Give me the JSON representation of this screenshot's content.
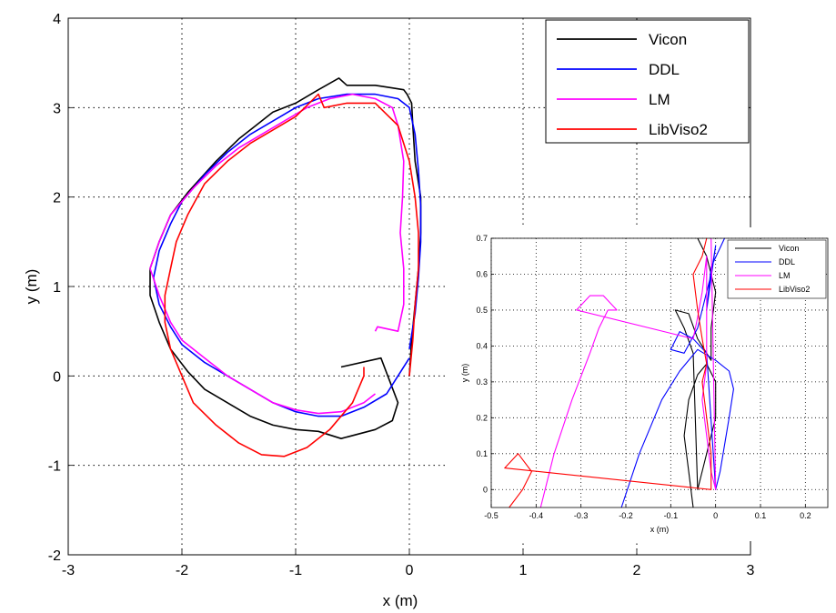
{
  "chart_data": [
    {
      "type": "line",
      "title": "",
      "xlabel": "x (m)",
      "ylabel": "y (m)",
      "xlim": [
        -3,
        3
      ],
      "ylim": [
        -2,
        4
      ],
      "xticks": [
        "-3",
        "-2",
        "-1",
        "0",
        "1",
        "2",
        "3"
      ],
      "yticks": [
        "-2",
        "-1",
        "0",
        "1",
        "2",
        "3",
        "4"
      ],
      "grid": true,
      "legend_position": "top-right",
      "series": [
        {
          "name": "Vicon",
          "color": "#000000",
          "x": [
            0.0,
            0.02,
            0.05,
            0.08,
            0.1,
            0.1,
            0.05,
            0.03,
            0.02,
            0.0,
            -0.02,
            -0.05,
            -0.15,
            -0.3,
            -0.55,
            -0.62,
            -0.8,
            -1.0,
            -1.2,
            -1.35,
            -1.5,
            -1.7,
            -1.95,
            -2.1,
            -2.2,
            -2.28,
            -2.28,
            -2.2,
            -2.1,
            -1.95,
            -1.8,
            -1.6,
            -1.4,
            -1.2,
            -1.0,
            -0.8,
            -0.6,
            -0.3,
            -0.15,
            -0.1,
            -0.25,
            -0.6
          ],
          "y": [
            0.0,
            0.4,
            0.8,
            1.2,
            1.6,
            2.0,
            2.4,
            2.8,
            3.05,
            3.1,
            3.15,
            3.2,
            3.22,
            3.25,
            3.25,
            3.33,
            3.2,
            3.05,
            2.95,
            2.8,
            2.65,
            2.4,
            2.05,
            1.8,
            1.5,
            1.2,
            0.9,
            0.6,
            0.3,
            0.05,
            -0.15,
            -0.3,
            -0.45,
            -0.55,
            -0.6,
            -0.62,
            -0.7,
            -0.6,
            -0.5,
            -0.3,
            0.2,
            0.1
          ]
        },
        {
          "name": "DDL",
          "color": "#0000ff",
          "x": [
            0.0,
            0.05,
            0.08,
            0.1,
            0.1,
            0.08,
            0.05,
            0.0,
            -0.1,
            -0.3,
            -0.55,
            -0.8,
            -1.0,
            -1.2,
            -1.4,
            -1.6,
            -1.8,
            -2.0,
            -2.1,
            -2.2,
            -2.25,
            -2.2,
            -2.1,
            -2.0,
            -1.8,
            -1.6,
            -1.4,
            -1.2,
            -1.0,
            -0.8,
            -0.6,
            -0.4,
            -0.2,
            -0.1,
            0.0
          ],
          "y": [
            0.3,
            0.7,
            1.1,
            1.5,
            1.9,
            2.3,
            2.7,
            3.0,
            3.1,
            3.15,
            3.15,
            3.1,
            3.0,
            2.85,
            2.7,
            2.5,
            2.25,
            1.95,
            1.7,
            1.4,
            1.1,
            0.8,
            0.55,
            0.35,
            0.15,
            0.0,
            -0.15,
            -0.3,
            -0.4,
            -0.45,
            -0.45,
            -0.35,
            -0.2,
            0.0,
            0.2
          ]
        },
        {
          "name": "LM",
          "color": "#ff00ff",
          "x": [
            -0.3,
            -0.28,
            -0.1,
            -0.05,
            -0.05,
            -0.08,
            -0.06,
            -0.05,
            -0.1,
            -0.15,
            -0.3,
            -0.5,
            -0.7,
            -0.9,
            -1.1,
            -1.3,
            -1.5,
            -1.7,
            -1.9,
            -2.1,
            -2.2,
            -2.28,
            -2.2,
            -2.1,
            -2.0,
            -1.8,
            -1.6,
            -1.4,
            -1.2,
            -1.0,
            -0.8,
            -0.6,
            -0.4,
            -0.3
          ],
          "y": [
            0.5,
            0.55,
            0.5,
            0.8,
            1.2,
            1.6,
            2.0,
            2.4,
            2.8,
            3.0,
            3.1,
            3.15,
            3.1,
            3.0,
            2.85,
            2.7,
            2.55,
            2.35,
            2.1,
            1.8,
            1.5,
            1.2,
            0.9,
            0.6,
            0.4,
            0.2,
            0.0,
            -0.15,
            -0.3,
            -0.38,
            -0.42,
            -0.4,
            -0.3,
            -0.2
          ]
        },
        {
          "name": "LibViso2",
          "color": "#ff0000",
          "x": [
            0.0,
            0.03,
            0.05,
            0.08,
            0.08,
            0.05,
            0.0,
            -0.1,
            -0.3,
            -0.55,
            -0.75,
            -0.8,
            -1.0,
            -1.2,
            -1.4,
            -1.6,
            -1.8,
            -1.95,
            -2.05,
            -2.1,
            -2.15,
            -2.15,
            -2.1,
            -2.0,
            -1.9,
            -1.7,
            -1.5,
            -1.3,
            -1.1,
            -0.9,
            -0.7,
            -0.5,
            -0.4,
            -0.4
          ],
          "y": [
            0.0,
            0.4,
            0.8,
            1.2,
            1.6,
            2.0,
            2.4,
            2.8,
            3.05,
            3.05,
            3.0,
            3.15,
            2.9,
            2.75,
            2.6,
            2.4,
            2.15,
            1.8,
            1.5,
            1.2,
            0.9,
            0.6,
            0.3,
            0.0,
            -0.3,
            -0.55,
            -0.75,
            -0.88,
            -0.9,
            -0.8,
            -0.6,
            -0.3,
            0.0,
            0.1
          ]
        }
      ]
    },
    {
      "type": "line",
      "title": "",
      "xlabel": "x (m)",
      "ylabel": "y (m)",
      "xlim": [
        -0.5,
        0.25
      ],
      "ylim": [
        -0.05,
        0.7
      ],
      "xticks": [
        "-0.5",
        "-0.4",
        "-0.3",
        "-0.2",
        "-0.1",
        "0",
        "0.1",
        "0.2"
      ],
      "yticks": [
        "0",
        "0.1",
        "0.2",
        "0.3",
        "0.4",
        "0.5",
        "0.6",
        "0.7"
      ],
      "grid": true,
      "legend_position": "top-right",
      "series": [
        {
          "name": "Vicon",
          "color": "#000000",
          "x": [
            -0.05,
            -0.06,
            -0.07,
            -0.06,
            -0.04,
            -0.02,
            0.0,
            0.0,
            -0.02,
            -0.04,
            -0.05,
            -0.07,
            -0.09,
            -0.06,
            -0.04,
            -0.01,
            -0.01,
            0.0,
            -0.01,
            -0.02,
            -0.04
          ],
          "y": [
            -0.05,
            0.05,
            0.15,
            0.25,
            0.32,
            0.35,
            0.3,
            0.2,
            0.1,
            0.0,
            0.38,
            0.45,
            0.5,
            0.49,
            0.42,
            0.36,
            0.45,
            0.55,
            0.6,
            0.65,
            0.7
          ]
        },
        {
          "name": "DDL",
          "color": "#0000ff",
          "x": [
            -0.21,
            -0.17,
            -0.12,
            -0.08,
            -0.04,
            0.0,
            0.03,
            0.04,
            0.03,
            0.01,
            0.0,
            -0.02,
            -0.05,
            -0.08,
            -0.1,
            -0.07,
            -0.04,
            -0.01,
            0.0,
            -0.02,
            -0.01,
            0.02
          ],
          "y": [
            -0.05,
            0.1,
            0.25,
            0.33,
            0.39,
            0.36,
            0.33,
            0.28,
            0.2,
            0.05,
            0.0,
            0.38,
            0.42,
            0.44,
            0.39,
            0.38,
            0.45,
            0.6,
            0.68,
            0.5,
            0.62,
            0.7
          ]
        },
        {
          "name": "LM",
          "color": "#ff00ff",
          "x": [
            -0.39,
            -0.36,
            -0.32,
            -0.28,
            -0.26,
            -0.24,
            -0.22,
            -0.25,
            -0.28,
            -0.31,
            -0.05,
            -0.04,
            -0.03,
            -0.02,
            -0.02,
            -0.03,
            -0.02,
            -0.01,
            0.0,
            -0.01
          ],
          "y": [
            -0.05,
            0.1,
            0.25,
            0.38,
            0.45,
            0.5,
            0.5,
            0.54,
            0.54,
            0.5,
            0.42,
            0.48,
            0.55,
            0.65,
            0.35,
            0.25,
            0.15,
            0.05,
            0.0,
            0.7
          ]
        },
        {
          "name": "LibViso2",
          "color": "#ff0000",
          "x": [
            -0.46,
            -0.43,
            -0.41,
            -0.44,
            -0.47,
            -0.01,
            -0.01,
            -0.02,
            -0.03,
            -0.02,
            -0.03,
            -0.04,
            -0.05,
            -0.03,
            -0.02
          ],
          "y": [
            -0.05,
            0.0,
            0.05,
            0.1,
            0.06,
            0.0,
            0.1,
            0.2,
            0.3,
            0.35,
            0.42,
            0.5,
            0.6,
            0.65,
            0.7
          ]
        }
      ]
    }
  ]
}
